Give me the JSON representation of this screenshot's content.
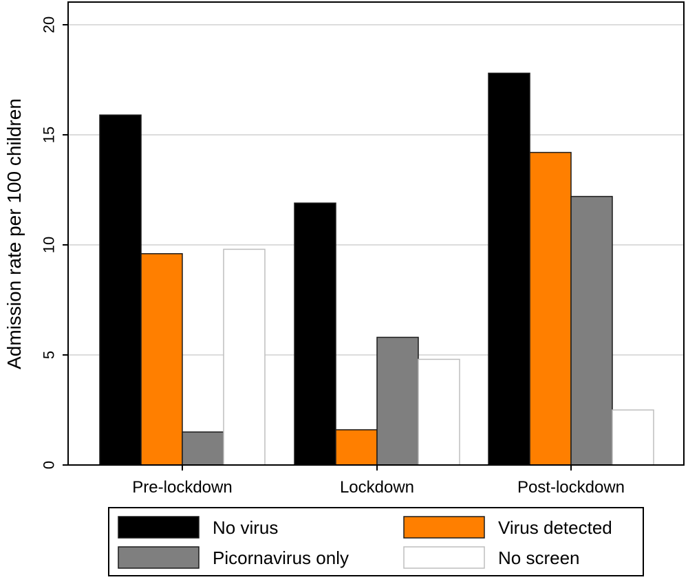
{
  "chart_data": {
    "type": "bar",
    "title": "",
    "xlabel": "",
    "ylabel": "Admission rate per 100 children",
    "ylim": [
      0,
      20
    ],
    "yticks": [
      0,
      5,
      10,
      15,
      20
    ],
    "grid": true,
    "legend_position": "bottom",
    "categories": [
      "Pre-lockdown",
      "Lockdown",
      "Post-lockdown"
    ],
    "series": [
      {
        "name": "No virus",
        "color": "#000000",
        "values": [
          15.9,
          11.9,
          17.8
        ]
      },
      {
        "name": "Virus detected",
        "color": "#ff7f00",
        "values": [
          9.6,
          1.6,
          14.2
        ]
      },
      {
        "name": "Picornavirus only",
        "color": "#7f7f7f",
        "values": [
          1.5,
          5.8,
          12.2
        ]
      },
      {
        "name": "No screen",
        "color": "#ffffff",
        "values": [
          9.8,
          4.8,
          2.5
        ]
      }
    ]
  }
}
